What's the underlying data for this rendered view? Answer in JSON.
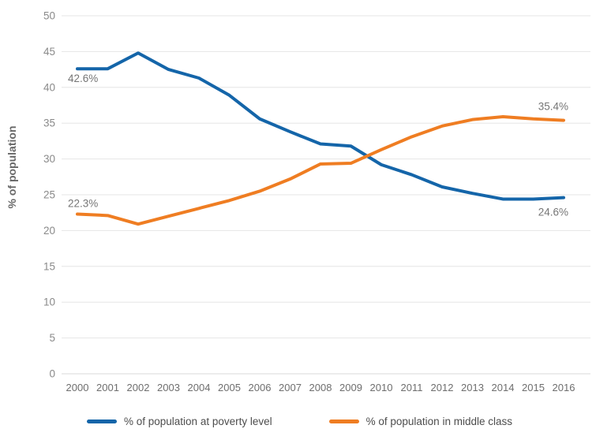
{
  "chart_data": {
    "type": "line",
    "title": "",
    "xlabel": "",
    "ylabel": "% of population",
    "ylim": [
      0,
      50
    ],
    "yticks": [
      0,
      5,
      10,
      15,
      20,
      25,
      30,
      35,
      40,
      45,
      50
    ],
    "grid": true,
    "legend_position": "bottom",
    "x": [
      2000,
      2001,
      2002,
      2003,
      2004,
      2005,
      2006,
      2007,
      2008,
      2009,
      2010,
      2011,
      2012,
      2013,
      2014,
      2015,
      2016
    ],
    "series": [
      {
        "name": "% of population at poverty level",
        "color": "#1465a9",
        "values": [
          42.6,
          42.6,
          44.8,
          42.5,
          41.3,
          38.9,
          35.6,
          33.8,
          32.1,
          31.8,
          29.2,
          27.8,
          26.1,
          25.2,
          24.4,
          24.4,
          24.6
        ]
      },
      {
        "name": "% of population in middle class",
        "color": "#ef7d22",
        "values": [
          22.3,
          22.1,
          20.9,
          22.0,
          23.1,
          24.2,
          25.5,
          27.2,
          29.3,
          29.4,
          31.3,
          33.1,
          34.6,
          35.5,
          35.9,
          35.6,
          35.4
        ]
      }
    ],
    "annotations": [
      {
        "text": "42.6%",
        "series": 0,
        "x": 2000,
        "position": "below-left"
      },
      {
        "text": "22.3%",
        "series": 1,
        "x": 2000,
        "position": "above-left"
      },
      {
        "text": "35.4%",
        "series": 1,
        "x": 2016,
        "position": "above-right"
      },
      {
        "text": "24.6%",
        "series": 0,
        "x": 2016,
        "position": "below-right"
      }
    ],
    "colors": {
      "grid": "#e6e6e6",
      "axis_line": "#d9d9d9",
      "tick_text": "#8a8a8a",
      "x_tick_text": "#6e6e6e",
      "annotation_text": "#757575",
      "axis_title_text": "#686868"
    }
  }
}
